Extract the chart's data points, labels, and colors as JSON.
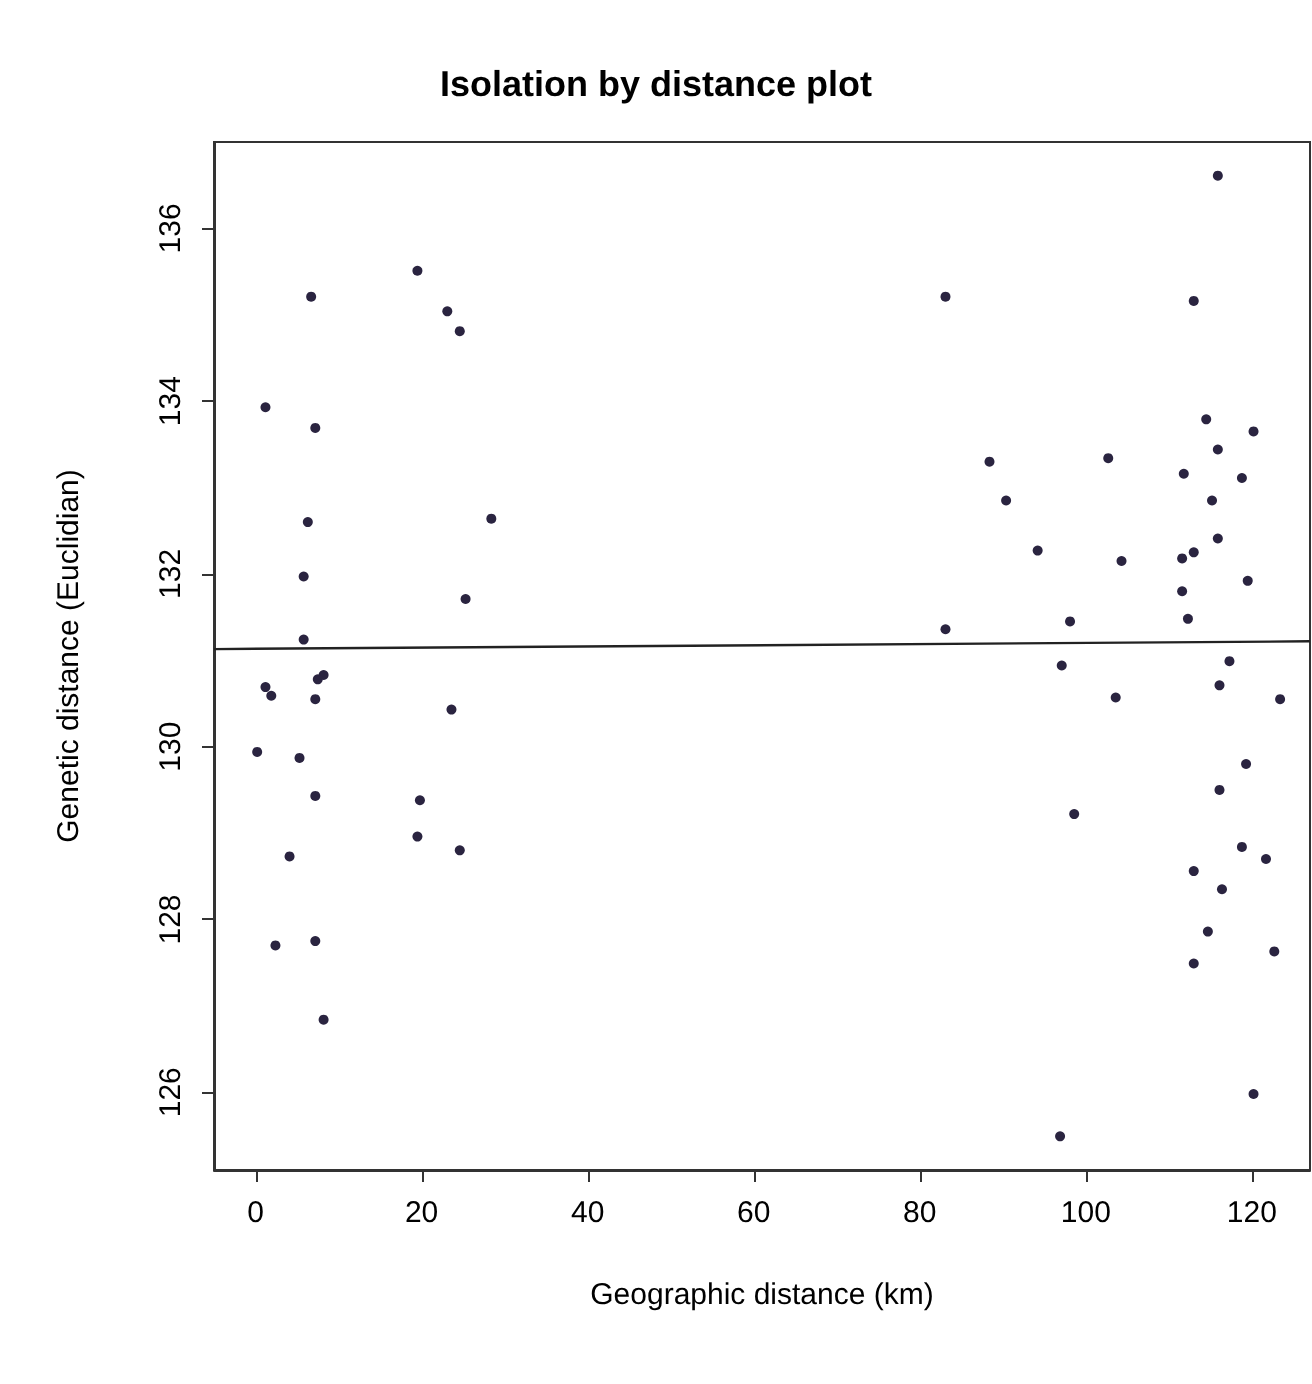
{
  "chart_data": {
    "type": "scatter",
    "title": "Isolation by distance plot",
    "xlabel": "Geographic distance (km)",
    "ylabel": "Genetic distance (Euclidian)",
    "series": [
      {
        "color": "#2a2440",
        "x": [
          6.7,
          19.5,
          23.1,
          24.6,
          1.2,
          7.2,
          28.4,
          6.3,
          5.8,
          25.3,
          5.8,
          1.2,
          1.9,
          8.2,
          7.5,
          7.2,
          23.6,
          0.2,
          5.3,
          7.2,
          19.8,
          19.5,
          4.1,
          24.6,
          2.4,
          7.2,
          8.2,
          115.9,
          83.1,
          113.0,
          114.5,
          120.2,
          115.9,
          88.4,
          102.7,
          111.8,
          118.8,
          90.4,
          115.2,
          115.9,
          94.2,
          104.3,
          113.0,
          111.6,
          119.5,
          111.6,
          83.1,
          98.1,
          112.3,
          97.1,
          117.3,
          116.1,
          103.6,
          123.4,
          119.3,
          116.1,
          98.6,
          118.8,
          121.7,
          113.0,
          116.4,
          114.7,
          122.7,
          113.0,
          120.2,
          96.9
        ],
        "values": [
          135.21,
          135.51,
          135.04,
          134.81,
          133.93,
          133.69,
          132.64,
          132.6,
          131.97,
          131.71,
          131.24,
          130.69,
          130.59,
          130.83,
          130.78,
          130.55,
          130.43,
          129.94,
          129.87,
          129.43,
          129.38,
          128.96,
          128.73,
          128.8,
          127.7,
          127.75,
          126.84,
          136.61,
          135.21,
          135.16,
          133.79,
          133.65,
          133.44,
          133.3,
          133.34,
          133.16,
          133.11,
          132.85,
          132.85,
          132.41,
          132.27,
          132.15,
          132.25,
          132.18,
          131.92,
          131.8,
          131.36,
          131.45,
          131.48,
          130.94,
          130.99,
          130.71,
          130.57,
          130.55,
          129.8,
          129.5,
          129.22,
          128.84,
          128.7,
          128.56,
          128.35,
          127.86,
          127.63,
          127.49,
          125.98,
          125.49
        ]
      },
      {
        "type": "line",
        "marker": "none",
        "color": "#222222",
        "x": [
          -5,
          127
        ],
        "values": [
          131.13,
          131.22
        ]
      }
    ],
    "xlim": [
      -5,
      127
    ],
    "ylim": [
      125.1,
      137
    ],
    "xticks": [
      0,
      20,
      40,
      60,
      80,
      100,
      120
    ],
    "yticks": [
      126,
      128,
      130,
      132,
      134,
      136
    ],
    "grid": false,
    "marker": "circle"
  }
}
